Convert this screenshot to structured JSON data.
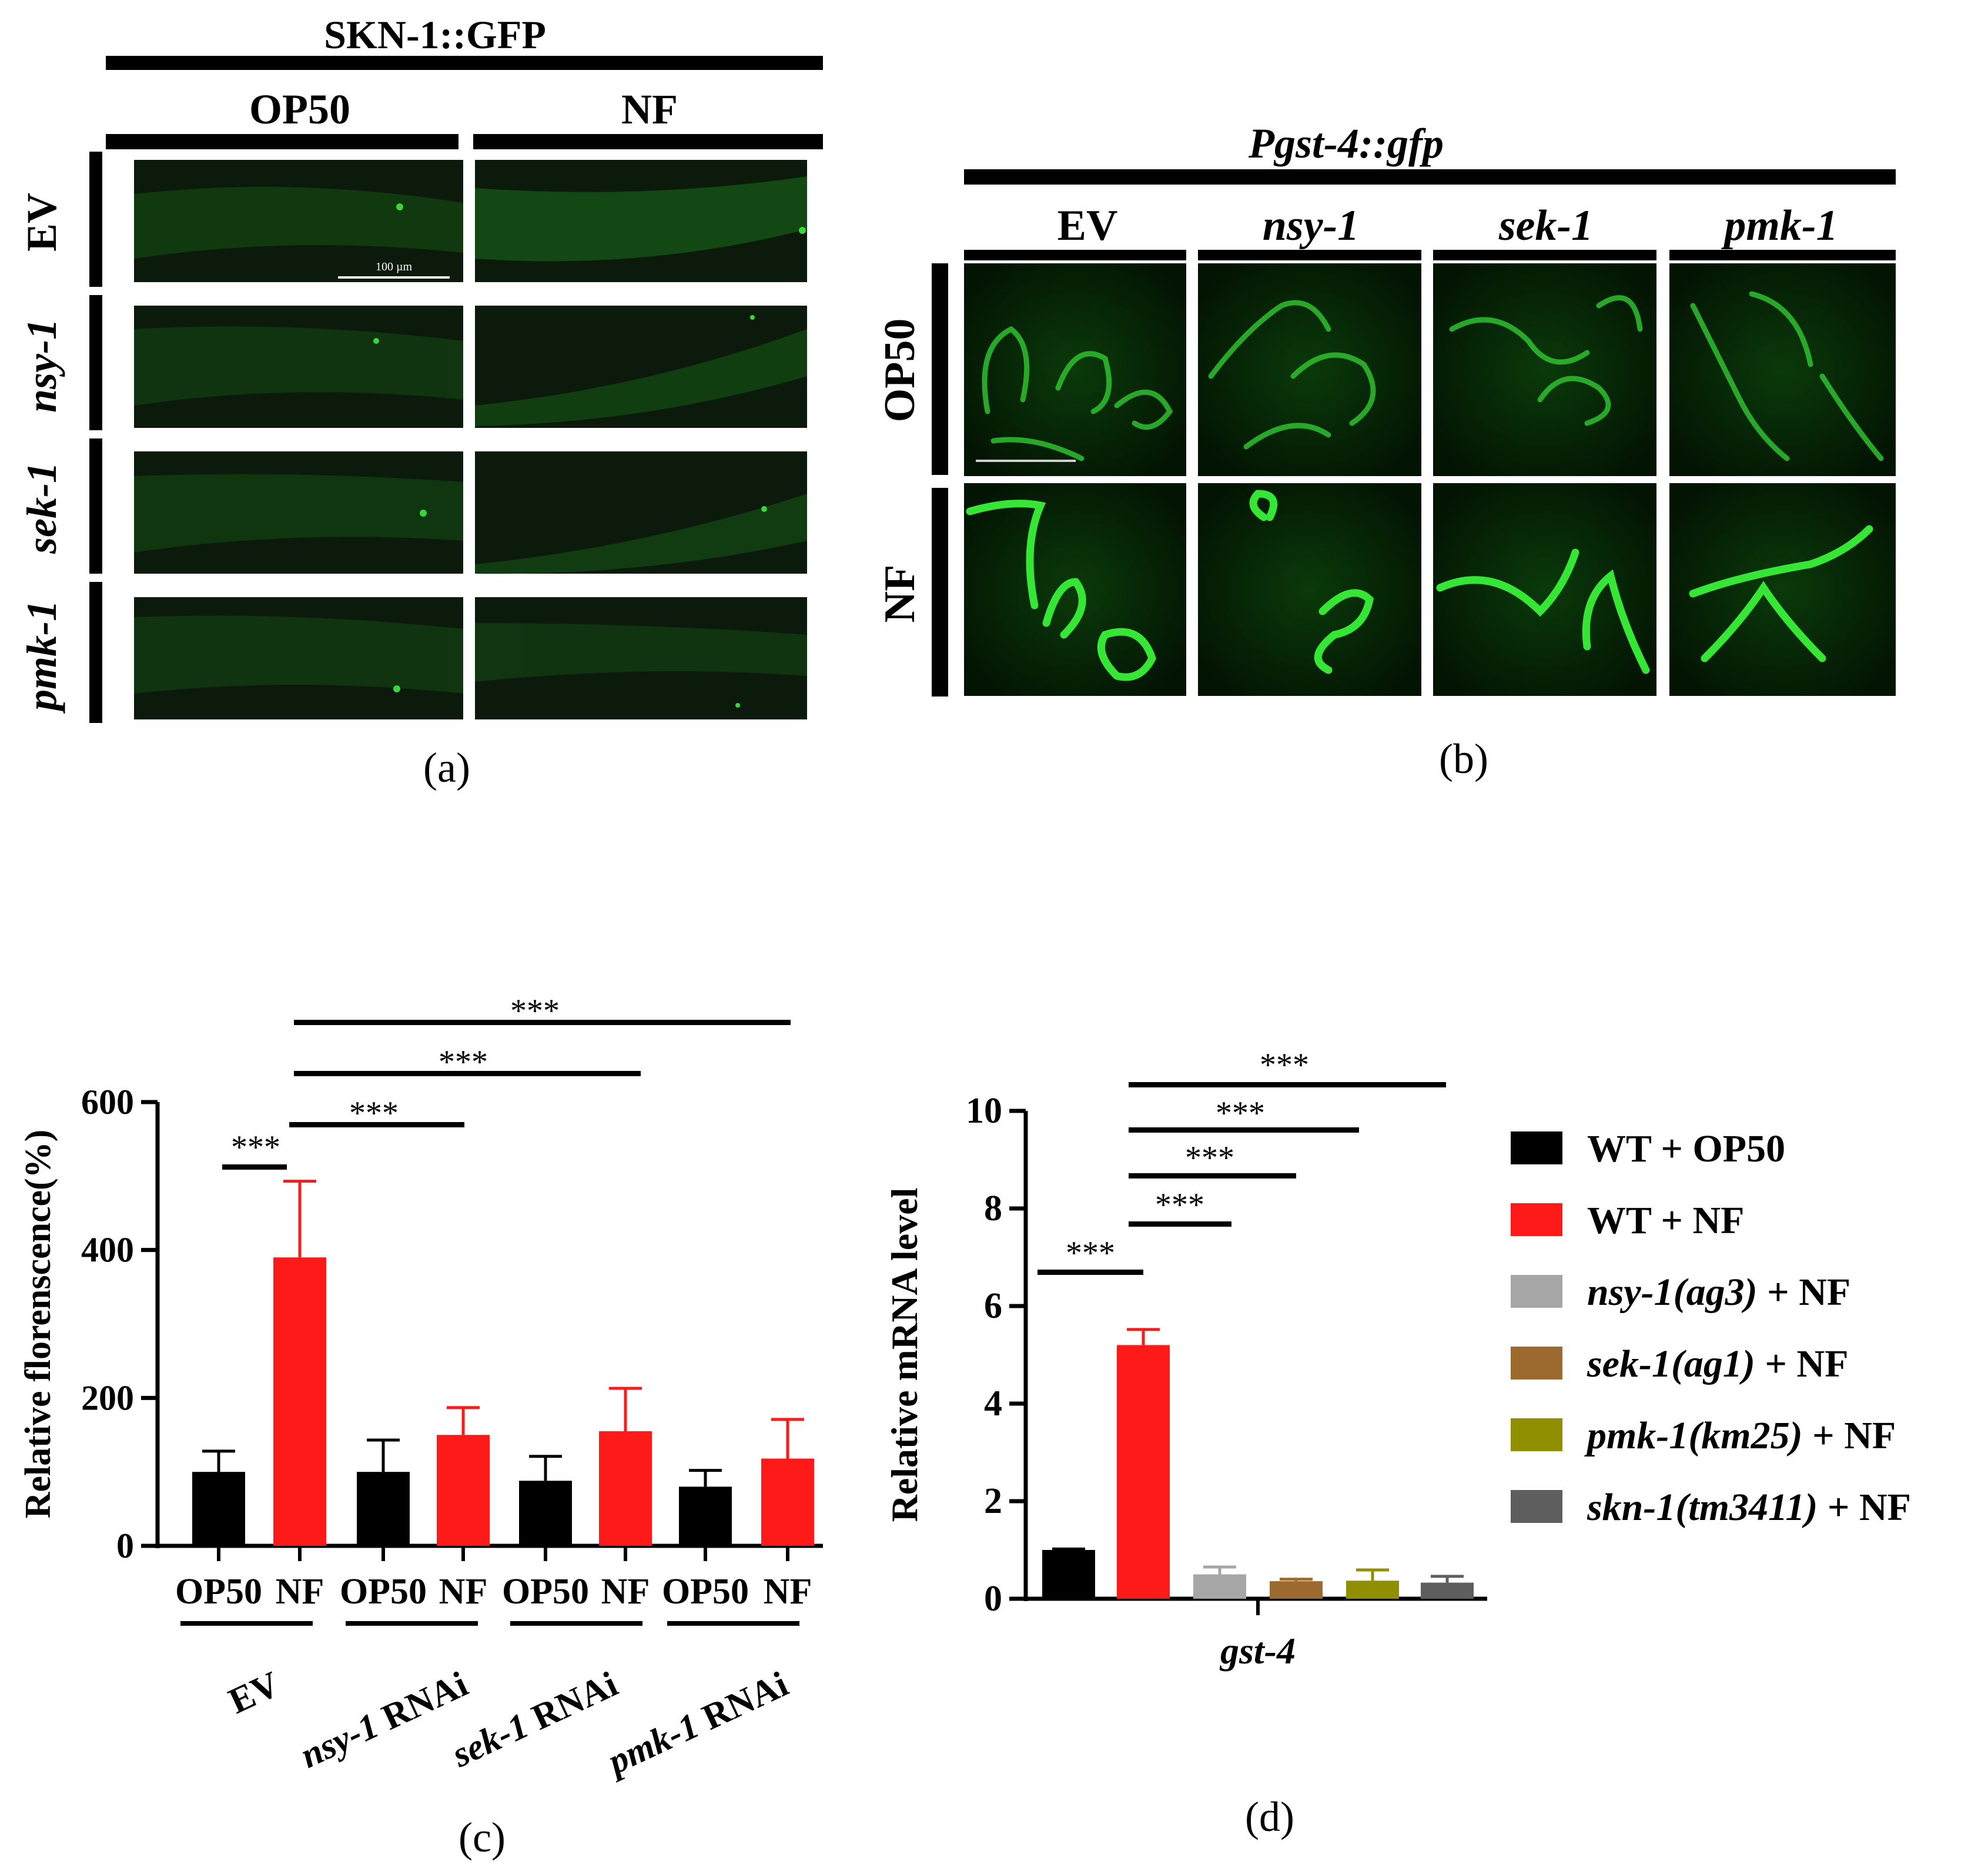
{
  "panel_a": {
    "title": "SKN-1::GFP",
    "col_labels": [
      "OP50",
      "NF"
    ],
    "row_labels": [
      "EV",
      "nsy-1",
      "sek-1",
      "pmk-1"
    ],
    "scale_bar_label": "100 µm",
    "caption": "(a)"
  },
  "panel_b": {
    "title": "Pgst-4::gfp",
    "col_labels": [
      "EV",
      "nsy-1",
      "sek-1",
      "pmk-1"
    ],
    "row_labels": [
      "OP50",
      "NF"
    ],
    "caption": "(b)"
  },
  "panel_c": {
    "caption": "(c)",
    "group_labels": [
      "EV",
      "nsy-1",
      "sek-1",
      "pmk-1"
    ],
    "group_suffix": " RNAi",
    "group_italic": [
      false,
      true,
      true,
      true
    ],
    "significance": [
      "***",
      "***",
      "***",
      "***"
    ]
  },
  "panel_d": {
    "caption": "(d)",
    "significance": [
      "***",
      "***",
      "***",
      "***",
      "***"
    ],
    "legend": [
      {
        "gene": "WT",
        "rest": " + OP50",
        "italic": false,
        "color": "#000000"
      },
      {
        "gene": "WT",
        "rest": " + NF",
        "italic": false,
        "color": "#ff1a1a"
      },
      {
        "gene": "nsy-1(ag3)",
        "rest": " + NF",
        "italic": true,
        "color": "#a6a6a6"
      },
      {
        "gene": "sek-1(ag1)",
        "rest": " + NF",
        "italic": true,
        "color": "#9c6a2e"
      },
      {
        "gene": "pmk-1(km25)",
        "rest": " + NF",
        "italic": true,
        "color": "#8f8f00"
      },
      {
        "gene": "skn-1(tm3411)",
        "rest": " + NF",
        "italic": true,
        "color": "#5e5e5e"
      }
    ]
  },
  "chart_data": [
    {
      "type": "bar",
      "ylabel": "Relative florenscence(%)",
      "ylim": [
        0,
        600
      ],
      "yticks": [
        0,
        200,
        400,
        600
      ],
      "categories": [
        "OP50",
        "NF",
        "OP50",
        "NF",
        "OP50",
        "NF",
        "OP50",
        "NF"
      ],
      "values": [
        100,
        390,
        100,
        150,
        88,
        155,
        80,
        118
      ],
      "errors": [
        28,
        103,
        43,
        37,
        33,
        58,
        22,
        53
      ],
      "colors": [
        "#000000",
        "#ff1a1a",
        "#000000",
        "#ff1a1a",
        "#000000",
        "#ff1a1a",
        "#000000",
        "#ff1a1a"
      ],
      "grid": false
    },
    {
      "type": "bar",
      "ylabel": "Relative mRNA level",
      "xlabel": "gst-4",
      "ylim": [
        0,
        10
      ],
      "yticks": [
        0,
        2,
        4,
        6,
        8,
        10
      ],
      "categories": [
        "WT + OP50",
        "WT + NF",
        "nsy-1(ag3) + NF",
        "sek-1(ag1) + NF",
        "pmk-1(km25) + NF",
        "skn-1(tm3411) + NF"
      ],
      "values": [
        1.0,
        5.2,
        0.5,
        0.36,
        0.37,
        0.33
      ],
      "errors": [
        0.02,
        0.32,
        0.15,
        0.04,
        0.22,
        0.13
      ],
      "colors": [
        "#000000",
        "#ff1a1a",
        "#a6a6a6",
        "#9c6a2e",
        "#8f8f00",
        "#5e5e5e"
      ],
      "legend": "right",
      "grid": false
    }
  ]
}
